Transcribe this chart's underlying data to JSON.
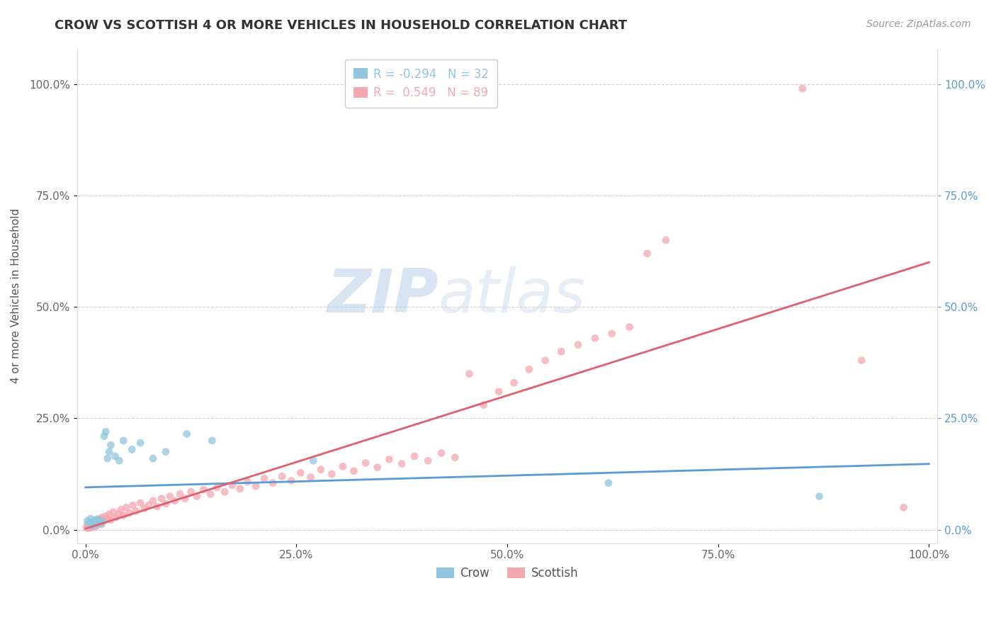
{
  "title": "CROW VS SCOTTISH 4 OR MORE VEHICLES IN HOUSEHOLD CORRELATION CHART",
  "source": "Source: ZipAtlas.com",
  "ylabel": "4 or more Vehicles in Household",
  "xlim": [
    -0.01,
    1.01
  ],
  "ylim": [
    -0.03,
    1.08
  ],
  "crow_R": -0.294,
  "crow_N": 32,
  "scottish_R": 0.549,
  "scottish_N": 89,
  "crow_color": "#92c5de",
  "scottish_color": "#f4a9b0",
  "crow_line_color": "#5b9bd5",
  "scottish_line_color": "#e06070",
  "watermark_zip": "ZIP",
  "watermark_atlas": "atlas",
  "crow_x": [
    0.002,
    0.004,
    0.006,
    0.007,
    0.008,
    0.009,
    0.01,
    0.011,
    0.012,
    0.013,
    0.014,
    0.015,
    0.017,
    0.018,
    0.02,
    0.022,
    0.024,
    0.026,
    0.028,
    0.03,
    0.035,
    0.04,
    0.045,
    0.055,
    0.065,
    0.08,
    0.095,
    0.12,
    0.15,
    0.27,
    0.62,
    0.87
  ],
  "crow_y": [
    0.02,
    0.015,
    0.025,
    0.01,
    0.008,
    0.018,
    0.012,
    0.022,
    0.016,
    0.019,
    0.024,
    0.013,
    0.02,
    0.015,
    0.018,
    0.21,
    0.22,
    0.16,
    0.175,
    0.19,
    0.165,
    0.155,
    0.2,
    0.18,
    0.195,
    0.16,
    0.175,
    0.215,
    0.2,
    0.155,
    0.105,
    0.075
  ],
  "scottish_x": [
    0.001,
    0.002,
    0.003,
    0.004,
    0.005,
    0.006,
    0.007,
    0.008,
    0.009,
    0.01,
    0.011,
    0.012,
    0.013,
    0.014,
    0.015,
    0.016,
    0.017,
    0.018,
    0.019,
    0.02,
    0.022,
    0.024,
    0.026,
    0.028,
    0.03,
    0.033,
    0.036,
    0.039,
    0.042,
    0.045,
    0.048,
    0.052,
    0.056,
    0.06,
    0.065,
    0.07,
    0.075,
    0.08,
    0.085,
    0.09,
    0.095,
    0.1,
    0.106,
    0.112,
    0.118,
    0.125,
    0.132,
    0.14,
    0.148,
    0.156,
    0.165,
    0.174,
    0.183,
    0.192,
    0.202,
    0.212,
    0.222,
    0.233,
    0.244,
    0.255,
    0.267,
    0.279,
    0.292,
    0.305,
    0.318,
    0.332,
    0.346,
    0.36,
    0.375,
    0.39,
    0.406,
    0.422,
    0.438,
    0.455,
    0.472,
    0.49,
    0.508,
    0.526,
    0.545,
    0.564,
    0.584,
    0.604,
    0.624,
    0.645,
    0.666,
    0.688,
    0.85,
    0.92,
    0.97
  ],
  "scottish_y": [
    0.005,
    0.01,
    0.003,
    0.008,
    0.006,
    0.012,
    0.005,
    0.015,
    0.008,
    0.01,
    0.018,
    0.007,
    0.012,
    0.02,
    0.015,
    0.022,
    0.018,
    0.025,
    0.012,
    0.028,
    0.02,
    0.03,
    0.025,
    0.035,
    0.022,
    0.04,
    0.028,
    0.035,
    0.045,
    0.032,
    0.05,
    0.038,
    0.055,
    0.042,
    0.06,
    0.048,
    0.055,
    0.065,
    0.052,
    0.07,
    0.058,
    0.075,
    0.065,
    0.08,
    0.07,
    0.085,
    0.075,
    0.09,
    0.08,
    0.095,
    0.085,
    0.1,
    0.092,
    0.108,
    0.098,
    0.115,
    0.105,
    0.12,
    0.11,
    0.128,
    0.118,
    0.135,
    0.125,
    0.142,
    0.132,
    0.15,
    0.14,
    0.158,
    0.148,
    0.165,
    0.155,
    0.172,
    0.162,
    0.35,
    0.28,
    0.31,
    0.33,
    0.36,
    0.38,
    0.4,
    0.415,
    0.43,
    0.44,
    0.455,
    0.62,
    0.65,
    0.99,
    0.38,
    0.05
  ]
}
